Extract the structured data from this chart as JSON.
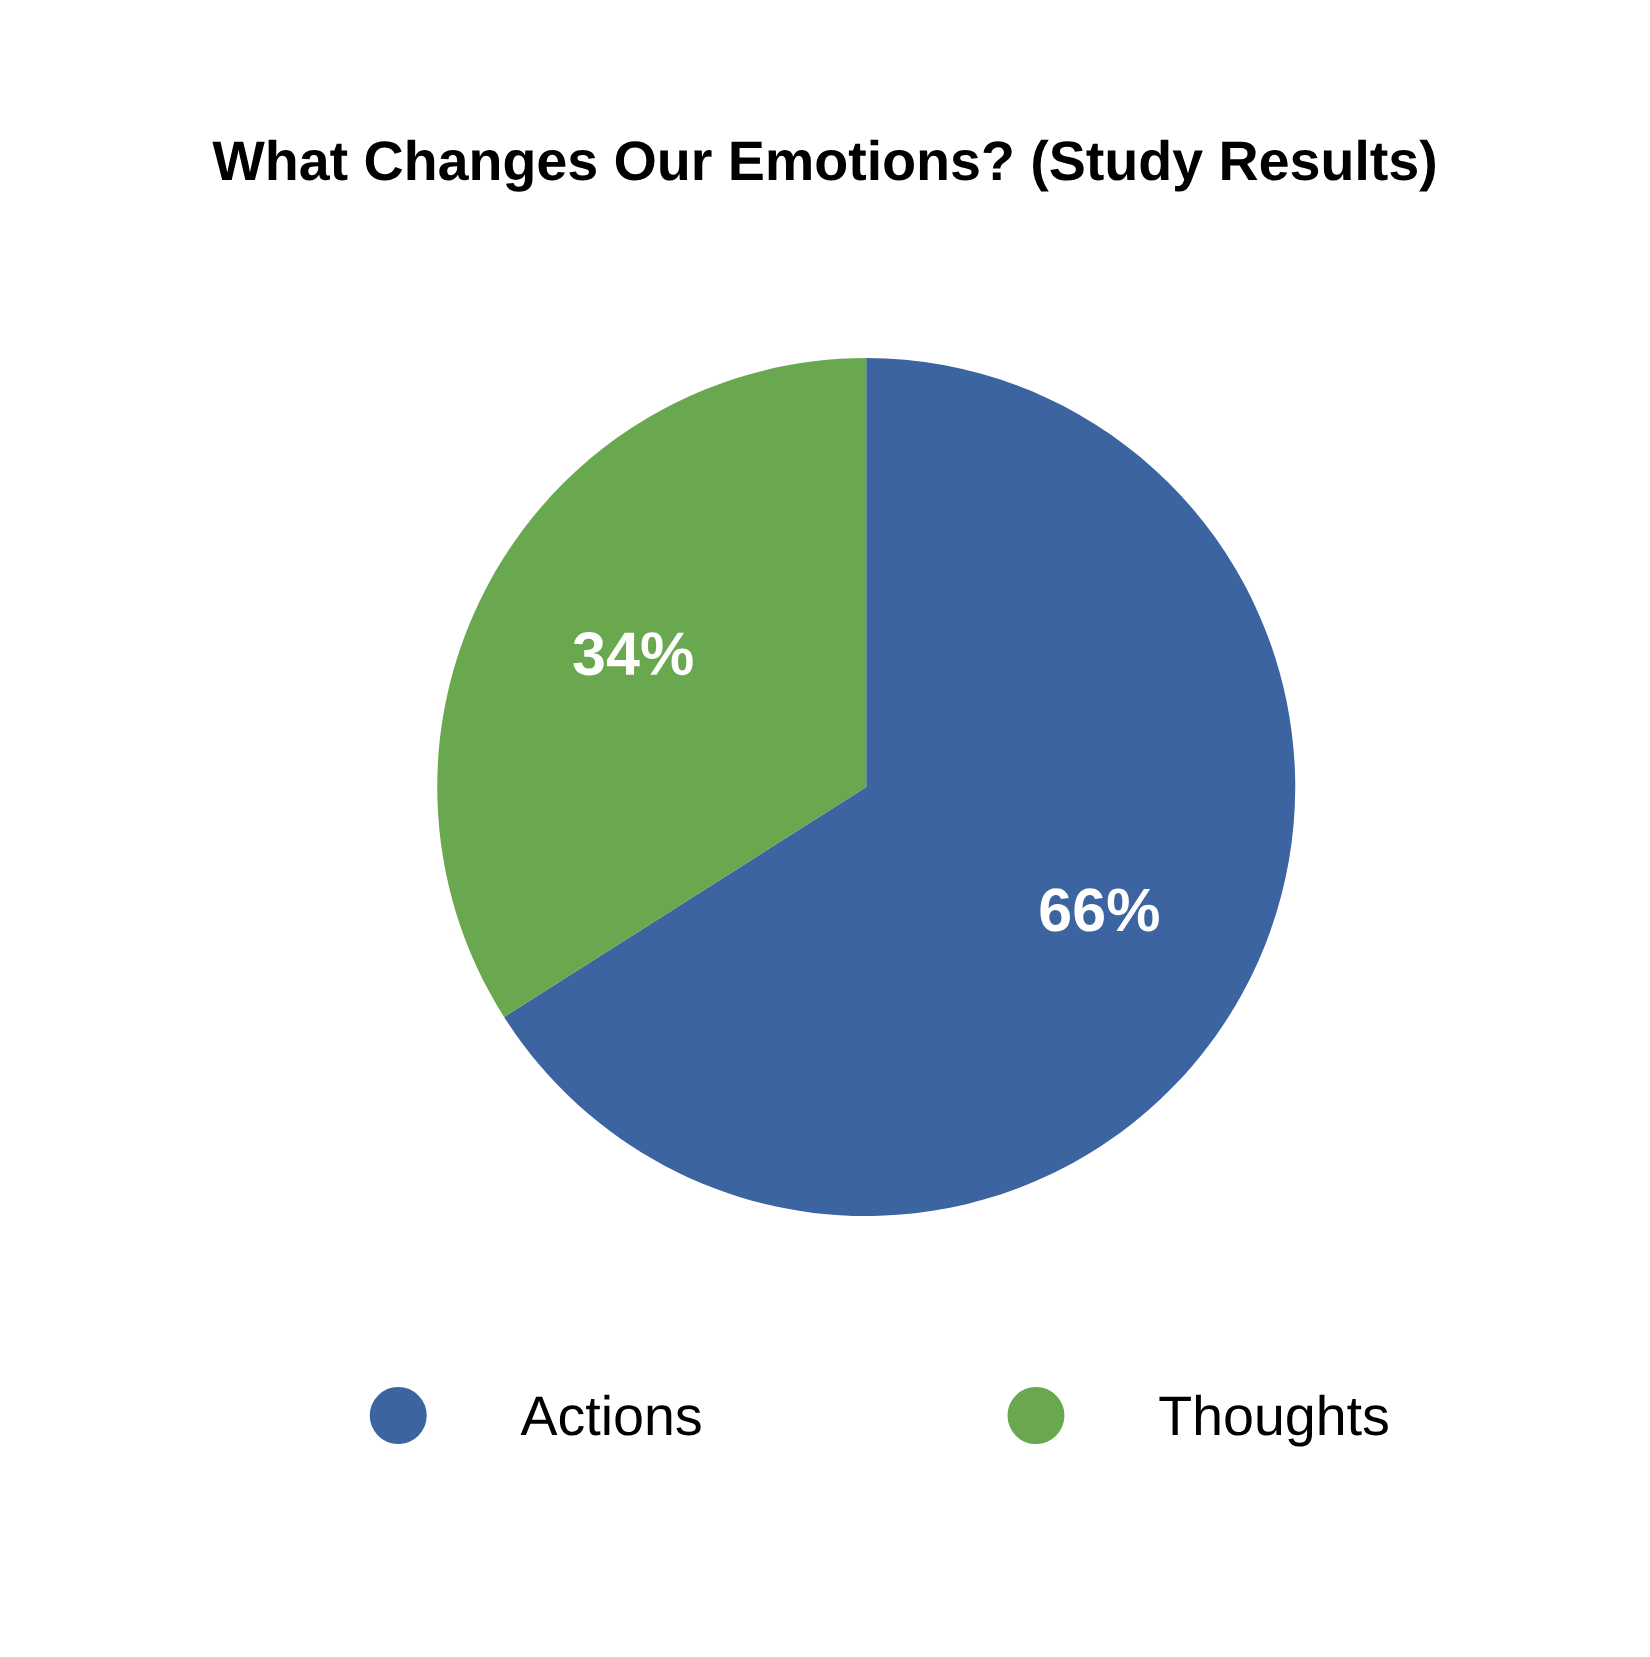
{
  "chart_data": {
    "type": "pie",
    "title": "What Changes Our Emotions? (Study Results)",
    "categories": [
      "Actions",
      "Thoughts"
    ],
    "values": [
      66,
      34
    ],
    "colors": [
      "#3b64a0",
      "#6aa84f"
    ],
    "value_labels": [
      "66%",
      "34%"
    ],
    "legend": "bottom"
  }
}
